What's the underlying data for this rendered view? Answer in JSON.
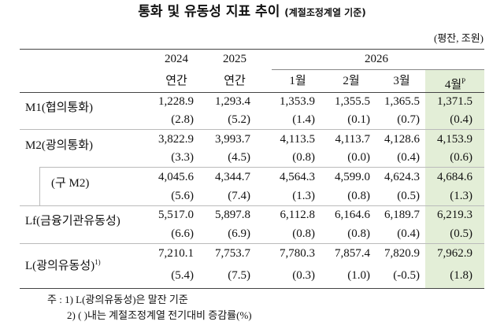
{
  "header": {
    "title": "통화 및 유동성 지표 추이",
    "subtitle": "(계절조정계열 기준)",
    "unit": "(평잔, 조원)"
  },
  "table": {
    "years": [
      "2024",
      "2025",
      "2026"
    ],
    "periods": [
      "연간",
      "연간",
      "1월",
      "2월",
      "3월",
      "4월"
    ],
    "period_marker": "P",
    "rows": [
      {
        "label": "M1(협의통화)",
        "values": [
          "1,228.9",
          "1,293.4",
          "1,353.9",
          "1,355.5",
          "1,365.5",
          "1,371.5"
        ],
        "changes": [
          "(2.8)",
          "(5.2)",
          "(1.4)",
          "(0.1)",
          "(0.7)",
          "(0.4)"
        ]
      },
      {
        "label": "M2(광의통화)",
        "values": [
          "3,822.9",
          "3,993.7",
          "4,113.5",
          "4,113.7",
          "4,128.6",
          "4,153.9"
        ],
        "changes": [
          "(3.3)",
          "(4.5)",
          "(0.8)",
          "(0.0)",
          "(0.4)",
          "(0.6)"
        ]
      },
      {
        "label": "(구 M2)",
        "values": [
          "4,045.6",
          "4,344.7",
          "4,564.3",
          "4,599.0",
          "4,624.3",
          "4,684.6"
        ],
        "changes": [
          "(5.6)",
          "(7.4)",
          "(1.3)",
          "(0.8)",
          "(0.5)",
          "(1.3)"
        ]
      },
      {
        "label": "Lf(금융기관유동성)",
        "values": [
          "5,517.0",
          "5,897.8",
          "6,112.8",
          "6,164.6",
          "6,189.7",
          "6,219.3"
        ],
        "changes": [
          "(6.6)",
          "(6.9)",
          "(0.8)",
          "(0.8)",
          "(0.4)",
          "(0.5)"
        ]
      },
      {
        "label": "L(광의유동성)",
        "note": "1)",
        "values": [
          "7,210.1",
          "7,753.7",
          "7,780.3",
          "7,857.4",
          "7,820.9",
          "7,962.9"
        ],
        "changes": [
          "(5.4)",
          "(7.5)",
          "(0.3)",
          "(1.0)",
          "(-0.5)",
          "(1.8)"
        ]
      }
    ]
  },
  "notes": {
    "prefix": "주 :",
    "items": [
      "1) L(광의유동성)은 말잔 기준",
      "2) (   )내는 계절조정계열 전기대비 증감률(%)"
    ]
  }
}
